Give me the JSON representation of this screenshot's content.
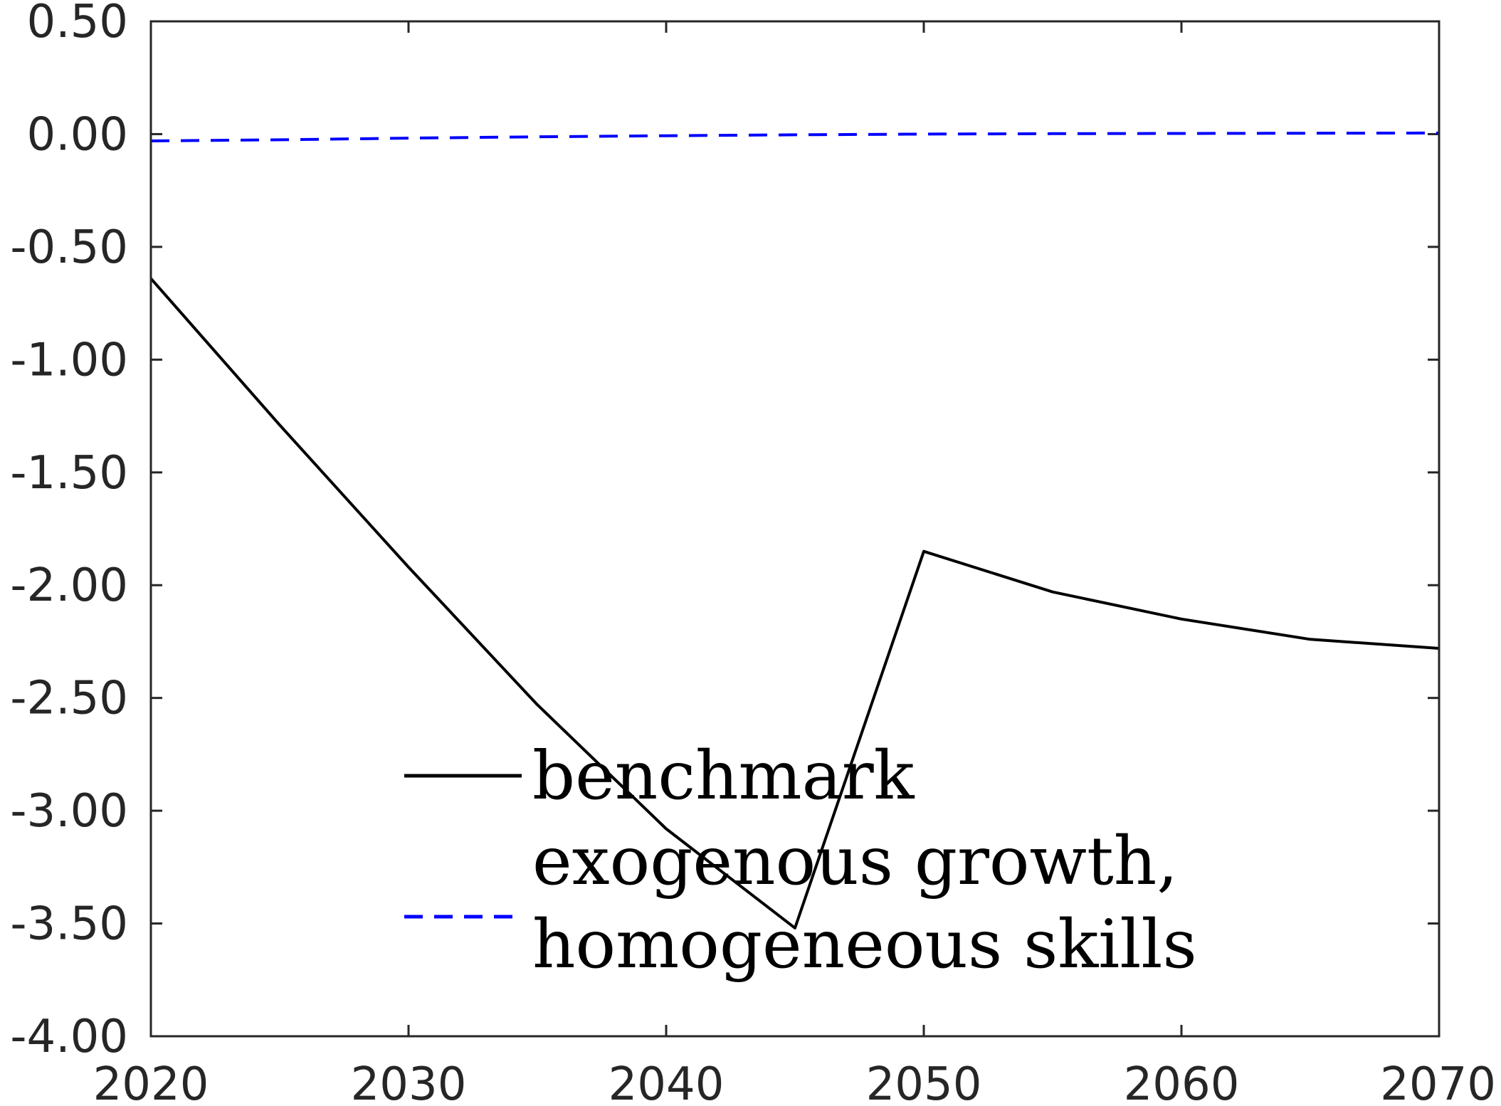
{
  "chart_data": {
    "type": "line",
    "title": "",
    "xlabel": "",
    "ylabel": "",
    "xlim": [
      2020,
      2070
    ],
    "ylim": [
      -4.0,
      0.5
    ],
    "x_ticks": [
      "2020",
      "2030",
      "2040",
      "2050",
      "2060",
      "2070"
    ],
    "y_ticks": [
      "0.50",
      "0.00",
      "-0.50",
      "-1.00",
      "-1.50",
      "-2.00",
      "-2.50",
      "-3.00",
      "-3.50",
      "-4.00"
    ],
    "grid": false,
    "legend_position": "bottom-center",
    "x": [
      2020,
      2025,
      2030,
      2035,
      2040,
      2045,
      2050,
      2055,
      2060,
      2065,
      2070
    ],
    "series": [
      {
        "name": "benchmark",
        "color": "#000000",
        "style": "solid",
        "values": [
          -0.64,
          -1.29,
          -1.92,
          -2.53,
          -3.08,
          -3.52,
          -1.85,
          -2.03,
          -2.15,
          -2.24,
          -2.28
        ]
      },
      {
        "name": "exogenous growth, homogeneous skills",
        "color": "#0000ff",
        "style": "dashed",
        "values": [
          -0.03,
          -0.025,
          -0.018,
          -0.012,
          -0.007,
          -0.003,
          0.0,
          0.002,
          0.003,
          0.004,
          0.005
        ]
      }
    ],
    "legend_lines": [
      [
        "benchmark"
      ],
      [
        "exogenous growth,",
        "homogeneous skills"
      ]
    ]
  }
}
